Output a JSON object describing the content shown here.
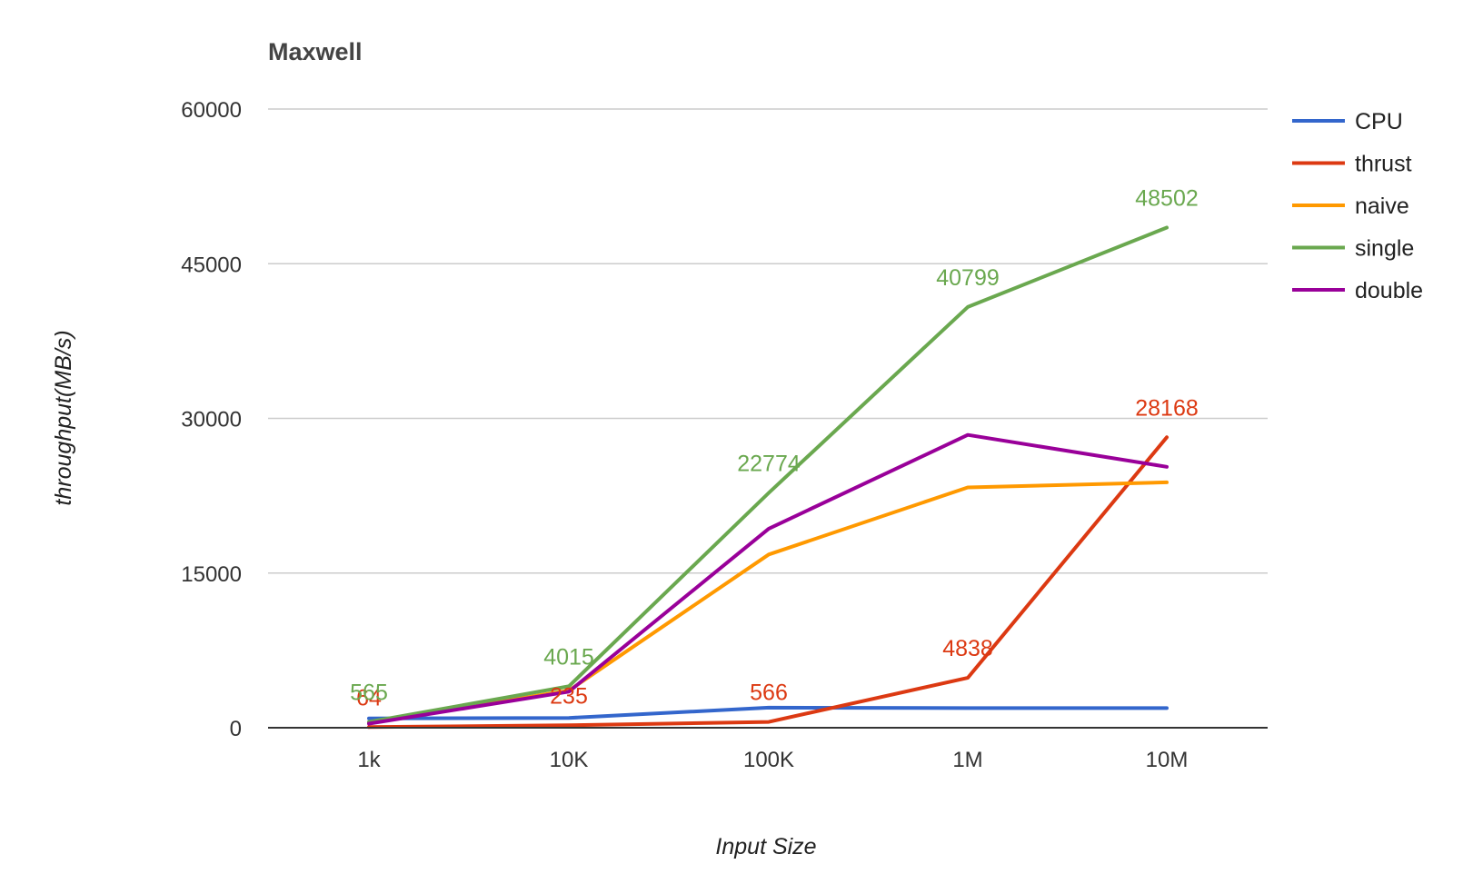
{
  "chart_data": {
    "type": "line",
    "title": "Maxwell",
    "xlabel": "Input Size",
    "ylabel": "throughput(MB/s)",
    "categories": [
      "1k",
      "10K",
      "100K",
      "1M",
      "10M"
    ],
    "ylim": [
      0,
      60000
    ],
    "yticks": [
      0,
      15000,
      30000,
      45000,
      60000
    ],
    "grid": true,
    "legend_position": "right",
    "series": [
      {
        "name": "CPU",
        "color": "#3366cc",
        "values": [
          900,
          950,
          1950,
          1900,
          1900
        ],
        "labels": [
          null,
          null,
          null,
          null,
          null
        ]
      },
      {
        "name": "thrust",
        "color": "#dc3912",
        "values": [
          64,
          235,
          566,
          4838,
          28168
        ],
        "labels": [
          "64",
          "235",
          "566",
          "4838",
          "28168"
        ]
      },
      {
        "name": "naive",
        "color": "#ff9900",
        "values": [
          500,
          3600,
          16800,
          23300,
          23800
        ],
        "labels": [
          null,
          null,
          null,
          null,
          null
        ]
      },
      {
        "name": "single",
        "color": "#6aa84f",
        "values": [
          565,
          4015,
          22774,
          40799,
          48502
        ],
        "labels": [
          "565",
          "4015",
          "22774",
          "40799",
          "48502"
        ]
      },
      {
        "name": "double",
        "color": "#990099",
        "values": [
          400,
          3500,
          19300,
          28400,
          25300
        ],
        "labels": [
          null,
          null,
          null,
          null,
          null
        ]
      }
    ]
  }
}
